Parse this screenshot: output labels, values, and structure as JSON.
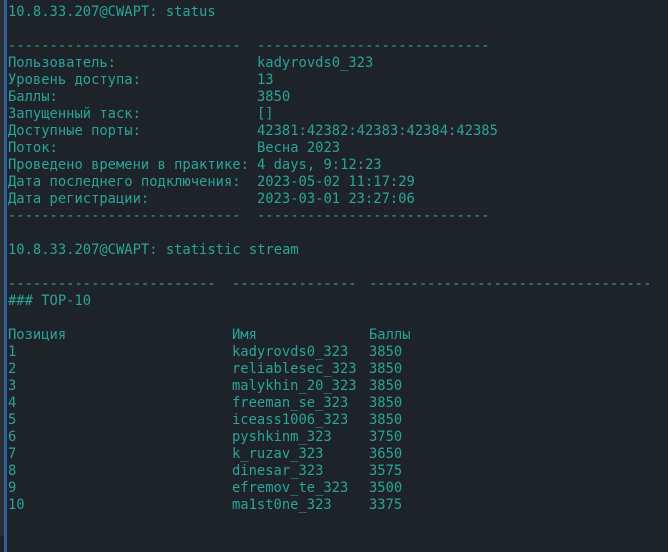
{
  "status_section": {
    "prompt": "10.8.33.207@CWAPT: status",
    "divider_left": "----------------------------",
    "divider_right": "----------------------------",
    "fields": [
      {
        "label": "Пользователь:",
        "value": "kadyrovds0_323"
      },
      {
        "label": "Уровень доступа:",
        "value": "13"
      },
      {
        "label": "Баллы:",
        "value": "3850"
      },
      {
        "label": "Запущенный таск:",
        "value": "[]"
      },
      {
        "label": "Доступные порты:",
        "value": "42381:42382:42383:42384:42385"
      },
      {
        "label": "Поток:",
        "value": "Весна 2023"
      },
      {
        "label": "Проведено времени в практике:",
        "value": "4 days, 9:12:23"
      },
      {
        "label": "Дата последнего подключения:",
        "value": "2023-05-02 11:17:29"
      },
      {
        "label": "Дата регистрации:",
        "value": "2023-03-01 23:27:06"
      }
    ]
  },
  "stream_section": {
    "prompt": "10.8.33.207@CWAPT: statistic stream",
    "dividers": [
      "-------------------------",
      "---------------",
      "----------------------------------"
    ],
    "heading": "### TOP-10",
    "columns": [
      "Позиция",
      "Имя",
      "Баллы"
    ],
    "rows": [
      [
        "1",
        "kadyrovds0_323",
        "3850"
      ],
      [
        "2",
        "reliablesec_323",
        "3850"
      ],
      [
        "3",
        "malykhin_20_323",
        "3850"
      ],
      [
        "4",
        "freeman_se_323",
        "3850"
      ],
      [
        "5",
        "iceass1006_323",
        "3850"
      ],
      [
        "6",
        "pyshkinm_323",
        "3750"
      ],
      [
        "7",
        "k_ruzav_323",
        "3650"
      ],
      [
        "8",
        "dinesar_323",
        "3575"
      ],
      [
        "9",
        "efremov_te_323",
        "3500"
      ],
      [
        "10",
        "ma1st0ne_323",
        "3375"
      ]
    ]
  },
  "colors": {
    "background": "#1e2229",
    "text": "#2aa597",
    "left_bar": "#2f5f9a"
  }
}
